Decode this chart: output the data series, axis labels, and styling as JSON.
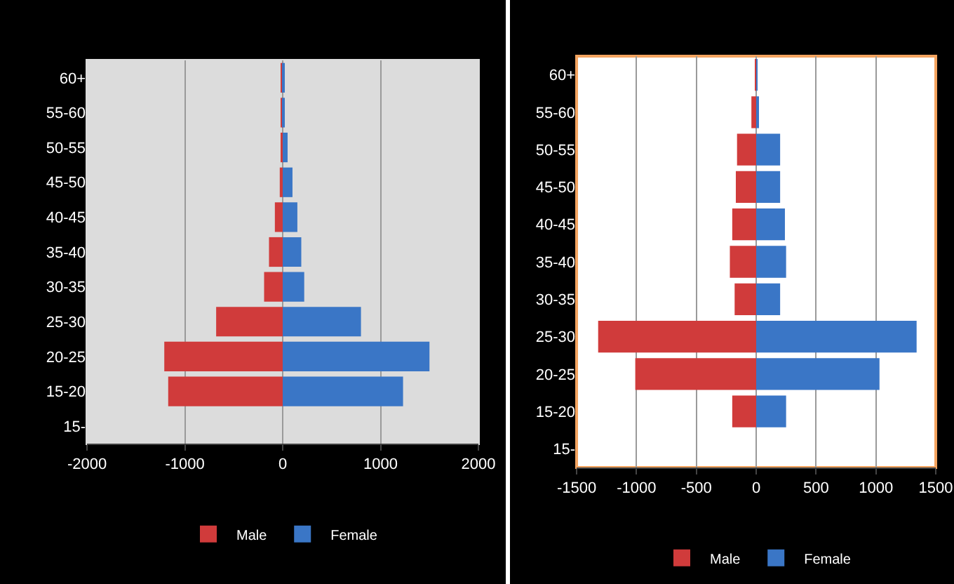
{
  "chart_data": [
    {
      "type": "bar",
      "orientation": "horizontal",
      "stacked": true,
      "categories": [
        "60+",
        "55-60",
        "50-55",
        "45-50",
        "40-45",
        "35-40",
        "30-35",
        "25-30",
        "20-25",
        "15-20",
        "15-"
      ],
      "series": [
        {
          "name": "Male",
          "color": "#d03b3b",
          "values": [
            -20,
            -20,
            -20,
            -30,
            -80,
            -140,
            -190,
            -680,
            -1210,
            -1170,
            0
          ]
        },
        {
          "name": "Female",
          "color": "#3a76c6",
          "values": [
            10,
            10,
            50,
            100,
            150,
            190,
            220,
            800,
            1500,
            1230,
            0
          ]
        }
      ],
      "xlim": [
        -2000,
        2000
      ],
      "xticks": [
        -2000,
        -1000,
        0,
        1000,
        2000
      ],
      "grid": "x",
      "legend": "bottom"
    },
    {
      "type": "bar",
      "orientation": "horizontal",
      "stacked": true,
      "categories": [
        "60+",
        "55-60",
        "50-55",
        "45-50",
        "40-45",
        "35-40",
        "30-35",
        "25-30",
        "20-25",
        "15-20",
        "15-"
      ],
      "series": [
        {
          "name": "Male",
          "color": "#d03b3b",
          "values": [
            -10,
            -40,
            -160,
            -170,
            -200,
            -220,
            -180,
            -1320,
            -1010,
            -200,
            0
          ]
        },
        {
          "name": "Female",
          "color": "#3a76c6",
          "values": [
            10,
            20,
            200,
            200,
            240,
            250,
            200,
            1340,
            1030,
            250,
            0
          ]
        }
      ],
      "xlim": [
        -1500,
        1500
      ],
      "xticks": [
        -1500,
        -1000,
        -500,
        0,
        500,
        1000,
        1500
      ],
      "grid": "x",
      "legend": "bottom"
    }
  ]
}
